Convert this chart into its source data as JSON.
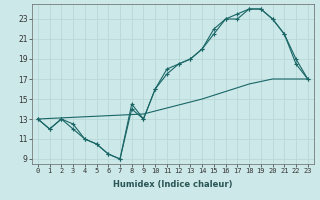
{
  "xlabel": "Humidex (Indice chaleur)",
  "background_color": "#cce8e8",
  "grid_color": "#b8d8d8",
  "line_color": "#1a6666",
  "line1_x": [
    0,
    1,
    2,
    3,
    4,
    5,
    6,
    7,
    8,
    9,
    10,
    11,
    12,
    13,
    14,
    15,
    16,
    17,
    18,
    19,
    20,
    21,
    22,
    23
  ],
  "line1_y": [
    13,
    12,
    13,
    12,
    11,
    10.5,
    9.5,
    9,
    14,
    13,
    16,
    17.5,
    18.5,
    19,
    20,
    21.5,
    23,
    23,
    24,
    24,
    23,
    21.5,
    18.5,
    17
  ],
  "line2_x": [
    0,
    1,
    2,
    3,
    4,
    5,
    6,
    7,
    8,
    9,
    10,
    11,
    12,
    13,
    14,
    15,
    16,
    17,
    18,
    19,
    20,
    21,
    22,
    23
  ],
  "line2_y": [
    13,
    12,
    13,
    12.5,
    11,
    10.5,
    9.5,
    9,
    14.5,
    13,
    16,
    18,
    18.5,
    19,
    20,
    22,
    23,
    23.5,
    24,
    24,
    23,
    21.5,
    19,
    17
  ],
  "line3_x": [
    0,
    9,
    14,
    18,
    20,
    21,
    22,
    23
  ],
  "line3_y": [
    13,
    13.5,
    15,
    16.5,
    17,
    17,
    17,
    17
  ],
  "xlim": [
    -0.5,
    23.5
  ],
  "ylim": [
    8.5,
    24.5
  ],
  "xticks": [
    0,
    1,
    2,
    3,
    4,
    5,
    6,
    7,
    8,
    9,
    10,
    11,
    12,
    13,
    14,
    15,
    16,
    17,
    18,
    19,
    20,
    21,
    22,
    23
  ],
  "yticks": [
    9,
    11,
    13,
    15,
    17,
    19,
    21,
    23
  ]
}
